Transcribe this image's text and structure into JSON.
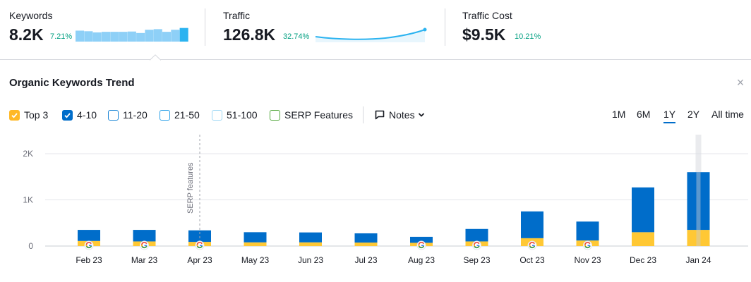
{
  "summary": {
    "keywords": {
      "label": "Keywords",
      "value": "8.2K",
      "delta": "7.21%"
    },
    "traffic": {
      "label": "Traffic",
      "value": "126.8K",
      "delta": "32.74%"
    },
    "traffic_cost": {
      "label": "Traffic Cost",
      "value": "$9.5K",
      "delta": "10.21%"
    },
    "keywords_spark": [
      0.74,
      0.7,
      0.62,
      0.66,
      0.66,
      0.66,
      0.68,
      0.58,
      0.8,
      0.84,
      0.66,
      0.8,
      0.92
    ],
    "colors": {
      "positive": "#009f81",
      "spark_bar": "#8ed0f7",
      "spark_bar_active": "#2bb3f0",
      "spark_line": "#2bb3f0"
    }
  },
  "panel": {
    "title": "Organic Keywords Trend",
    "filters": [
      {
        "label": "Top 3",
        "checked": true,
        "color": "#ffb825"
      },
      {
        "label": "4-10",
        "checked": true,
        "color": "#006dca"
      },
      {
        "label": "11-20",
        "checked": false,
        "color": "#1e87d6"
      },
      {
        "label": "21-50",
        "checked": false,
        "color": "#2aa0e8"
      },
      {
        "label": "51-100",
        "checked": false,
        "color": "#9ed8f5"
      },
      {
        "label": "SERP Features",
        "checked": false,
        "color": "#52a73c"
      }
    ],
    "notes_label": "Notes",
    "ranges": [
      "1M",
      "6M",
      "1Y",
      "2Y",
      "All time"
    ],
    "active_range": "1Y",
    "close_icon": "close-icon"
  },
  "chart_data": {
    "type": "bar",
    "stacked": true,
    "categories": [
      "Feb 23",
      "Mar 23",
      "Apr 23",
      "May 23",
      "Jun 23",
      "Jul 23",
      "Aug 23",
      "Sep 23",
      "Oct 23",
      "Nov 23",
      "Dec 23",
      "Jan 24"
    ],
    "series": [
      {
        "name": "Top 3",
        "color": "#ffc834",
        "values": [
          110,
          100,
          90,
          80,
          80,
          75,
          70,
          100,
          170,
          120,
          300,
          350
        ]
      },
      {
        "name": "4-10",
        "color": "#006dca",
        "values": [
          240,
          250,
          250,
          220,
          215,
          200,
          130,
          270,
          580,
          410,
          970,
          1250
        ]
      }
    ],
    "yticks": [
      0,
      1000,
      2000
    ],
    "ytick_labels": [
      "0",
      "1K",
      "2K"
    ],
    "ylim": [
      0,
      2000
    ],
    "grid": true,
    "annotation": {
      "category": "Apr 23",
      "text": "SERP features"
    },
    "google_marker_categories": [
      "Feb 23",
      "Mar 23",
      "Apr 23",
      "Aug 23",
      "Sep 23",
      "Oct 23",
      "Nov 23"
    ],
    "highlight_category": "Jan 24"
  }
}
